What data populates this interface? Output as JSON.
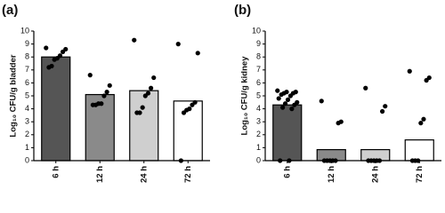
{
  "chart_data": [
    {
      "type": "bar",
      "panel": "(a)",
      "y_label": "Log₁₀ CFU/g bladder",
      "categories": [
        "6 h",
        "12 h",
        "24 h",
        "72 h"
      ],
      "values": [
        8.0,
        5.1,
        5.4,
        4.6
      ],
      "colors": [
        "#555555",
        "#8a8a8a",
        "#cfcfcf",
        "#ffffff"
      ],
      "points": [
        [
          8.7,
          8.6,
          8.4,
          8.1,
          7.9,
          7.8,
          7.3,
          7.2
        ],
        [
          6.6,
          5.8,
          5.3,
          5.0,
          4.4,
          4.4,
          4.3,
          4.3
        ],
        [
          9.3,
          6.4,
          5.6,
          5.2,
          5.0,
          4.1,
          3.7,
          3.7
        ],
        [
          9.0,
          8.3,
          4.5,
          4.3,
          4.0,
          3.9,
          3.7,
          0.0
        ]
      ],
      "ylim": [
        0,
        10
      ],
      "yticks": [
        0,
        1,
        2,
        3,
        4,
        5,
        6,
        7,
        8,
        9,
        10
      ]
    },
    {
      "type": "bar",
      "panel": "(b)",
      "y_label": "Log₁₀ CFU/g kidney",
      "categories": [
        "6 h",
        "12 h",
        "24 h",
        "72 h"
      ],
      "values": [
        4.3,
        0.85,
        0.85,
        1.6
      ],
      "colors": [
        "#555555",
        "#8a8a8a",
        "#cfcfcf",
        "#ffffff"
      ],
      "points": [
        [
          5.4,
          5.3,
          5.3,
          5.2,
          5.2,
          5.1,
          5.0,
          4.8,
          4.7,
          4.5,
          4.4,
          4.3,
          4.1,
          4.0,
          0.0,
          0.0
        ],
        [
          4.6,
          3.0,
          2.9,
          0.0,
          0.0,
          0.0,
          0.0,
          0.0
        ],
        [
          5.6,
          4.2,
          3.8,
          0.0,
          0.0,
          0.0,
          0.0,
          0.0
        ],
        [
          6.9,
          6.4,
          6.2,
          3.2,
          2.9,
          0.0,
          0.0,
          0.0
        ]
      ],
      "ylim": [
        0,
        10
      ],
      "yticks": [
        0,
        1,
        2,
        3,
        4,
        5,
        6,
        7,
        8,
        9,
        10
      ]
    }
  ]
}
